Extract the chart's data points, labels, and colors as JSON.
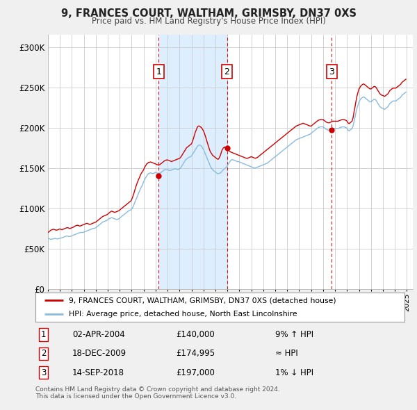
{
  "title": "9, FRANCES COURT, WALTHAM, GRIMSBY, DN37 0XS",
  "subtitle": "Price paid vs. HM Land Registry's House Price Index (HPI)",
  "legend_label_red": "9, FRANCES COURT, WALTHAM, GRIMSBY, DN37 0XS (detached house)",
  "legend_label_blue": "HPI: Average price, detached house, North East Lincolnshire",
  "footer": "Contains HM Land Registry data © Crown copyright and database right 2024.\nThis data is licensed under the Open Government Licence v3.0.",
  "transactions": [
    {
      "num": 1,
      "date": "02-APR-2004",
      "date_x": 2004.25,
      "price": 140000,
      "hpi_label": "9% ↑ HPI"
    },
    {
      "num": 2,
      "date": "18-DEC-2009",
      "date_x": 2009.96,
      "price": 174995,
      "hpi_label": "≈ HPI"
    },
    {
      "num": 3,
      "date": "14-SEP-2018",
      "date_x": 2018.71,
      "price": 197000,
      "hpi_label": "1% ↓ HPI"
    }
  ],
  "shaded_region": [
    2004.25,
    2009.96
  ],
  "yticks": [
    0,
    50000,
    100000,
    150000,
    200000,
    250000,
    300000
  ],
  "ytick_labels": [
    "£0",
    "£50K",
    "£100K",
    "£150K",
    "£200K",
    "£250K",
    "£300K"
  ],
  "xmin": 1995.0,
  "xmax": 2025.5,
  "ymin": 0,
  "ymax": 315000,
  "bg_color": "#f0f0f0",
  "plot_bg_color": "#ffffff",
  "red_color": "#cc0000",
  "blue_color": "#88bbdd",
  "shaded_color": "#ddeeff",
  "grid_color": "#cccccc",
  "hpi_data_years": [
    1995.0,
    1995.08,
    1995.17,
    1995.25,
    1995.33,
    1995.42,
    1995.5,
    1995.58,
    1995.67,
    1995.75,
    1995.83,
    1995.92,
    1996.0,
    1996.08,
    1996.17,
    1996.25,
    1996.33,
    1996.42,
    1996.5,
    1996.58,
    1996.67,
    1996.75,
    1996.83,
    1996.92,
    1997.0,
    1997.08,
    1997.17,
    1997.25,
    1997.33,
    1997.42,
    1997.5,
    1997.58,
    1997.67,
    1997.75,
    1997.83,
    1997.92,
    1998.0,
    1998.08,
    1998.17,
    1998.25,
    1998.33,
    1998.42,
    1998.5,
    1998.58,
    1998.67,
    1998.75,
    1998.83,
    1998.92,
    1999.0,
    1999.08,
    1999.17,
    1999.25,
    1999.33,
    1999.42,
    1999.5,
    1999.58,
    1999.67,
    1999.75,
    1999.83,
    1999.92,
    2000.0,
    2000.08,
    2000.17,
    2000.25,
    2000.33,
    2000.42,
    2000.5,
    2000.58,
    2000.67,
    2000.75,
    2000.83,
    2000.92,
    2001.0,
    2001.08,
    2001.17,
    2001.25,
    2001.33,
    2001.42,
    2001.5,
    2001.58,
    2001.67,
    2001.75,
    2001.83,
    2001.92,
    2002.0,
    2002.08,
    2002.17,
    2002.25,
    2002.33,
    2002.42,
    2002.5,
    2002.58,
    2002.67,
    2002.75,
    2002.83,
    2002.92,
    2003.0,
    2003.08,
    2003.17,
    2003.25,
    2003.33,
    2003.42,
    2003.5,
    2003.58,
    2003.67,
    2003.75,
    2003.83,
    2003.92,
    2004.0,
    2004.08,
    2004.17,
    2004.25,
    2004.33,
    2004.42,
    2004.5,
    2004.58,
    2004.67,
    2004.75,
    2004.83,
    2004.92,
    2005.0,
    2005.08,
    2005.17,
    2005.25,
    2005.33,
    2005.42,
    2005.5,
    2005.58,
    2005.67,
    2005.75,
    2005.83,
    2005.92,
    2006.0,
    2006.08,
    2006.17,
    2006.25,
    2006.33,
    2006.42,
    2006.5,
    2006.58,
    2006.67,
    2006.75,
    2006.83,
    2006.92,
    2007.0,
    2007.08,
    2007.17,
    2007.25,
    2007.33,
    2007.42,
    2007.5,
    2007.58,
    2007.67,
    2007.75,
    2007.83,
    2007.92,
    2008.0,
    2008.08,
    2008.17,
    2008.25,
    2008.33,
    2008.42,
    2008.5,
    2008.58,
    2008.67,
    2008.75,
    2008.83,
    2008.92,
    2009.0,
    2009.08,
    2009.17,
    2009.25,
    2009.33,
    2009.42,
    2009.5,
    2009.58,
    2009.67,
    2009.75,
    2009.83,
    2009.92,
    2010.0,
    2010.08,
    2010.17,
    2010.25,
    2010.33,
    2010.42,
    2010.5,
    2010.58,
    2010.67,
    2010.75,
    2010.83,
    2010.92,
    2011.0,
    2011.08,
    2011.17,
    2011.25,
    2011.33,
    2011.42,
    2011.5,
    2011.58,
    2011.67,
    2011.75,
    2011.83,
    2011.92,
    2012.0,
    2012.08,
    2012.17,
    2012.25,
    2012.33,
    2012.42,
    2012.5,
    2012.58,
    2012.67,
    2012.75,
    2012.83,
    2012.92,
    2013.0,
    2013.08,
    2013.17,
    2013.25,
    2013.33,
    2013.42,
    2013.5,
    2013.58,
    2013.67,
    2013.75,
    2013.83,
    2013.92,
    2014.0,
    2014.08,
    2014.17,
    2014.25,
    2014.33,
    2014.42,
    2014.5,
    2014.58,
    2014.67,
    2014.75,
    2014.83,
    2014.92,
    2015.0,
    2015.08,
    2015.17,
    2015.25,
    2015.33,
    2015.42,
    2015.5,
    2015.58,
    2015.67,
    2015.75,
    2015.83,
    2015.92,
    2016.0,
    2016.08,
    2016.17,
    2016.25,
    2016.33,
    2016.42,
    2016.5,
    2016.58,
    2016.67,
    2016.75,
    2016.83,
    2016.92,
    2017.0,
    2017.08,
    2017.17,
    2017.25,
    2017.33,
    2017.42,
    2017.5,
    2017.58,
    2017.67,
    2017.75,
    2017.83,
    2017.92,
    2018.0,
    2018.08,
    2018.17,
    2018.25,
    2018.33,
    2018.42,
    2018.5,
    2018.58,
    2018.67,
    2018.75,
    2018.83,
    2018.92,
    2019.0,
    2019.08,
    2019.17,
    2019.25,
    2019.33,
    2019.42,
    2019.5,
    2019.58,
    2019.67,
    2019.75,
    2019.83,
    2019.92,
    2020.0,
    2020.08,
    2020.17,
    2020.25,
    2020.33,
    2020.42,
    2020.5,
    2020.58,
    2020.67,
    2020.75,
    2020.83,
    2020.92,
    2021.0,
    2021.08,
    2021.17,
    2021.25,
    2021.33,
    2021.42,
    2021.5,
    2021.58,
    2021.67,
    2021.75,
    2021.83,
    2021.92,
    2022.0,
    2022.08,
    2022.17,
    2022.25,
    2022.33,
    2022.42,
    2022.5,
    2022.58,
    2022.67,
    2022.75,
    2022.83,
    2022.92,
    2023.0,
    2023.08,
    2023.17,
    2023.25,
    2023.33,
    2023.42,
    2023.5,
    2023.58,
    2023.67,
    2023.75,
    2023.83,
    2023.92,
    2024.0,
    2024.08,
    2024.17,
    2024.25,
    2024.33,
    2024.42,
    2024.5,
    2024.58,
    2024.67,
    2024.75,
    2024.83,
    2024.92
  ],
  "hpi_data_values": [
    63000,
    62500,
    62000,
    61500,
    62000,
    62000,
    62500,
    62800,
    62500,
    62000,
    62200,
    62500,
    63000,
    63200,
    63500,
    64000,
    64500,
    65000,
    65500,
    65800,
    65500,
    65000,
    65200,
    65500,
    66000,
    66500,
    67000,
    67500,
    68000,
    68500,
    69000,
    69500,
    70000,
    70000,
    70200,
    70000,
    70500,
    71000,
    71500,
    72000,
    72500,
    73000,
    73500,
    74000,
    74500,
    75000,
    75200,
    75500,
    76000,
    77000,
    78000,
    79000,
    80000,
    81000,
    82000,
    83000,
    83500,
    84000,
    84500,
    85000,
    86000,
    87000,
    87500,
    88000,
    88500,
    88000,
    87500,
    87000,
    86500,
    86000,
    86500,
    87000,
    88000,
    89000,
    90000,
    91000,
    92000,
    93000,
    94000,
    95000,
    96000,
    97000,
    97500,
    98000,
    99000,
    101000,
    104000,
    107000,
    110000,
    113000,
    116000,
    119000,
    122000,
    125000,
    127000,
    130000,
    133000,
    136000,
    138000,
    140000,
    142000,
    143000,
    143500,
    144000,
    143500,
    143000,
    143500,
    144000,
    144500,
    144000,
    143500,
    143000,
    143500,
    144000,
    145000,
    146000,
    147000,
    148000,
    148000,
    148000,
    148000,
    147500,
    147000,
    147000,
    147500,
    148000,
    148500,
    149000,
    149000,
    148500,
    148000,
    148000,
    149000,
    150000,
    152000,
    154000,
    156000,
    158000,
    160000,
    161000,
    162000,
    163000,
    163500,
    164000,
    165000,
    167000,
    169000,
    171000,
    173000,
    175000,
    177000,
    178000,
    178500,
    178000,
    177000,
    175000,
    173000,
    170000,
    167000,
    164000,
    161000,
    158000,
    155000,
    152000,
    150000,
    148000,
    147000,
    146000,
    145000,
    144000,
    143000,
    143000,
    143500,
    144000,
    145000,
    146500,
    148000,
    149000,
    150000,
    151000,
    153000,
    155000,
    157000,
    159000,
    160000,
    160500,
    160000,
    159500,
    159000,
    158500,
    158000,
    158000,
    157500,
    157000,
    156500,
    156000,
    155500,
    155000,
    154500,
    154000,
    153500,
    153000,
    152500,
    152000,
    151500,
    151000,
    150500,
    150000,
    150000,
    150500,
    151000,
    151500,
    152000,
    152500,
    153000,
    153500,
    154000,
    154500,
    155000,
    155500,
    156000,
    157000,
    158000,
    159000,
    160000,
    161000,
    162000,
    163000,
    164000,
    165000,
    166000,
    167000,
    168000,
    169000,
    170000,
    171000,
    172000,
    173000,
    174000,
    175000,
    176000,
    177000,
    178000,
    179000,
    180000,
    181000,
    182000,
    183000,
    184000,
    185000,
    185500,
    186000,
    186500,
    187000,
    187500,
    188000,
    188500,
    189000,
    189500,
    190000,
    190500,
    191000,
    191500,
    192000,
    193000,
    194000,
    195000,
    196000,
    197000,
    198000,
    199000,
    200000,
    200500,
    201000,
    201000,
    201000,
    201000,
    200000,
    199000,
    198000,
    197500,
    197000,
    197000,
    197500,
    198000,
    198500,
    199000,
    199000,
    199000,
    199000,
    199000,
    199000,
    199500,
    200000,
    200500,
    201000,
    201000,
    201000,
    200500,
    200000,
    199000,
    197000,
    196000,
    197000,
    198000,
    199000,
    202000,
    207000,
    213000,
    219000,
    224000,
    228000,
    232000,
    234000,
    236000,
    237000,
    238000,
    238000,
    237000,
    236000,
    235000,
    234000,
    233000,
    232000,
    232000,
    233000,
    234000,
    235000,
    235000,
    234000,
    232000,
    230000,
    228000,
    226000,
    225000,
    224000,
    224000,
    223000,
    223000,
    224000,
    225000,
    226000,
    228000,
    230000,
    231000,
    232000,
    233000,
    233000,
    233000,
    233000,
    234000,
    235000,
    236000,
    237000,
    238000,
    240000,
    241000,
    242000,
    243000,
    244000
  ],
  "price_data_years": [
    1995.0,
    1995.08,
    1995.17,
    1995.25,
    1995.33,
    1995.42,
    1995.5,
    1995.58,
    1995.67,
    1995.75,
    1995.83,
    1995.92,
    1996.0,
    1996.08,
    1996.17,
    1996.25,
    1996.33,
    1996.42,
    1996.5,
    1996.58,
    1996.67,
    1996.75,
    1996.83,
    1996.92,
    1997.0,
    1997.08,
    1997.17,
    1997.25,
    1997.33,
    1997.42,
    1997.5,
    1997.58,
    1997.67,
    1997.75,
    1997.83,
    1997.92,
    1998.0,
    1998.08,
    1998.17,
    1998.25,
    1998.33,
    1998.42,
    1998.5,
    1998.58,
    1998.67,
    1998.75,
    1998.83,
    1998.92,
    1999.0,
    1999.08,
    1999.17,
    1999.25,
    1999.33,
    1999.42,
    1999.5,
    1999.58,
    1999.67,
    1999.75,
    1999.83,
    1999.92,
    2000.0,
    2000.08,
    2000.17,
    2000.25,
    2000.33,
    2000.42,
    2000.5,
    2000.58,
    2000.67,
    2000.75,
    2000.83,
    2000.92,
    2001.0,
    2001.08,
    2001.17,
    2001.25,
    2001.33,
    2001.42,
    2001.5,
    2001.58,
    2001.67,
    2001.75,
    2001.83,
    2001.92,
    2002.0,
    2002.08,
    2002.17,
    2002.25,
    2002.33,
    2002.42,
    2002.5,
    2002.58,
    2002.67,
    2002.75,
    2002.83,
    2002.92,
    2003.0,
    2003.08,
    2003.17,
    2003.25,
    2003.33,
    2003.42,
    2003.5,
    2003.58,
    2003.67,
    2003.75,
    2003.83,
    2003.92,
    2004.0,
    2004.08,
    2004.17,
    2004.25,
    2004.33,
    2004.42,
    2004.5,
    2004.58,
    2004.67,
    2004.75,
    2004.83,
    2004.92,
    2005.0,
    2005.08,
    2005.17,
    2005.25,
    2005.33,
    2005.42,
    2005.5,
    2005.58,
    2005.67,
    2005.75,
    2005.83,
    2005.92,
    2006.0,
    2006.08,
    2006.17,
    2006.25,
    2006.33,
    2006.42,
    2006.5,
    2006.58,
    2006.67,
    2006.75,
    2006.83,
    2006.92,
    2007.0,
    2007.08,
    2007.17,
    2007.25,
    2007.33,
    2007.42,
    2007.5,
    2007.58,
    2007.67,
    2007.75,
    2007.83,
    2007.92,
    2008.0,
    2008.08,
    2008.17,
    2008.25,
    2008.33,
    2008.42,
    2008.5,
    2008.58,
    2008.67,
    2008.75,
    2008.83,
    2008.92,
    2009.0,
    2009.08,
    2009.17,
    2009.25,
    2009.33,
    2009.42,
    2009.5,
    2009.58,
    2009.67,
    2009.75,
    2009.83,
    2009.92,
    2010.0,
    2010.08,
    2010.17,
    2010.25,
    2010.33,
    2010.42,
    2010.5,
    2010.58,
    2010.67,
    2010.75,
    2010.83,
    2010.92,
    2011.0,
    2011.08,
    2011.17,
    2011.25,
    2011.33,
    2011.42,
    2011.5,
    2011.58,
    2011.67,
    2011.75,
    2011.83,
    2011.92,
    2012.0,
    2012.08,
    2012.17,
    2012.25,
    2012.33,
    2012.42,
    2012.5,
    2012.58,
    2012.67,
    2012.75,
    2012.83,
    2012.92,
    2013.0,
    2013.08,
    2013.17,
    2013.25,
    2013.33,
    2013.42,
    2013.5,
    2013.58,
    2013.67,
    2013.75,
    2013.83,
    2013.92,
    2014.0,
    2014.08,
    2014.17,
    2014.25,
    2014.33,
    2014.42,
    2014.5,
    2014.58,
    2014.67,
    2014.75,
    2014.83,
    2014.92,
    2015.0,
    2015.08,
    2015.17,
    2015.25,
    2015.33,
    2015.42,
    2015.5,
    2015.58,
    2015.67,
    2015.75,
    2015.83,
    2015.92,
    2016.0,
    2016.08,
    2016.17,
    2016.25,
    2016.33,
    2016.42,
    2016.5,
    2016.58,
    2016.67,
    2016.75,
    2016.83,
    2016.92,
    2017.0,
    2017.08,
    2017.17,
    2017.25,
    2017.33,
    2017.42,
    2017.5,
    2017.58,
    2017.67,
    2017.75,
    2017.83,
    2017.92,
    2018.0,
    2018.08,
    2018.17,
    2018.25,
    2018.33,
    2018.42,
    2018.5,
    2018.58,
    2018.67,
    2018.75,
    2018.83,
    2018.92,
    2019.0,
    2019.08,
    2019.17,
    2019.25,
    2019.33,
    2019.42,
    2019.5,
    2019.58,
    2019.67,
    2019.75,
    2019.83,
    2019.92,
    2020.0,
    2020.08,
    2020.17,
    2020.25,
    2020.33,
    2020.42,
    2020.5,
    2020.58,
    2020.67,
    2020.75,
    2020.83,
    2020.92,
    2021.0,
    2021.08,
    2021.17,
    2021.25,
    2021.33,
    2021.42,
    2021.5,
    2021.58,
    2021.67,
    2021.75,
    2021.83,
    2021.92,
    2022.0,
    2022.08,
    2022.17,
    2022.25,
    2022.33,
    2022.42,
    2022.5,
    2022.58,
    2022.67,
    2022.75,
    2022.83,
    2022.92,
    2023.0,
    2023.08,
    2023.17,
    2023.25,
    2023.33,
    2023.42,
    2023.5,
    2023.58,
    2023.67,
    2023.75,
    2023.83,
    2023.92,
    2024.0,
    2024.08,
    2024.17,
    2024.25,
    2024.33,
    2024.42,
    2024.5,
    2024.58,
    2024.67,
    2024.75,
    2024.83,
    2024.92
  ],
  "price_data_values": [
    70000,
    71000,
    72000,
    73000,
    73500,
    74000,
    74000,
    73500,
    73000,
    73000,
    73500,
    74000,
    74500,
    74000,
    73500,
    74000,
    74500,
    75000,
    75500,
    76000,
    76000,
    75500,
    75000,
    75500,
    76000,
    76500,
    77000,
    78000,
    78500,
    79000,
    79000,
    78500,
    78000,
    78500,
    79000,
    79500,
    80000,
    80500,
    81000,
    81500,
    81000,
    80500,
    80000,
    80500,
    81000,
    81500,
    82000,
    82500,
    83000,
    84000,
    85000,
    86000,
    87000,
    88000,
    89000,
    90000,
    90500,
    91000,
    91500,
    92000,
    93000,
    94000,
    95000,
    96000,
    96500,
    96000,
    95500,
    95000,
    95500,
    96000,
    96500,
    97000,
    98000,
    99000,
    100000,
    101000,
    102000,
    103000,
    104000,
    105000,
    106000,
    107000,
    108000,
    109000,
    111000,
    114000,
    118000,
    122000,
    126000,
    130000,
    133000,
    136000,
    139000,
    142000,
    144000,
    146000,
    148000,
    151000,
    153000,
    155000,
    156000,
    157000,
    157000,
    157500,
    157000,
    156500,
    156000,
    155500,
    155000,
    154500,
    154000,
    153500,
    154000,
    155000,
    156000,
    157000,
    158000,
    159000,
    159500,
    160000,
    160000,
    159500,
    159000,
    158500,
    158000,
    158500,
    159000,
    159500,
    160000,
    160500,
    161000,
    161500,
    162000,
    163000,
    165000,
    167000,
    169000,
    171000,
    173000,
    175000,
    176000,
    177000,
    178000,
    179000,
    180000,
    183000,
    187000,
    191000,
    195000,
    198000,
    201000,
    202000,
    202000,
    201000,
    200000,
    198000,
    196000,
    193000,
    189000,
    185000,
    181000,
    177000,
    173000,
    170000,
    168000,
    166000,
    165000,
    164000,
    163000,
    162000,
    161000,
    161000,
    163000,
    166000,
    170000,
    173000,
    175000,
    176000,
    175000,
    174000,
    173000,
    172000,
    171000,
    170000,
    169500,
    169000,
    168500,
    168000,
    167500,
    167000,
    166500,
    166000,
    165500,
    165000,
    164500,
    164000,
    163500,
    163000,
    162500,
    162000,
    162000,
    162500,
    163000,
    163500,
    164000,
    163500,
    163000,
    162500,
    162000,
    162500,
    163000,
    164000,
    165000,
    166000,
    167000,
    168000,
    169000,
    170000,
    171000,
    172000,
    173000,
    174000,
    175000,
    176000,
    177000,
    178000,
    179000,
    180000,
    181000,
    182000,
    183000,
    184000,
    185000,
    186000,
    187000,
    188000,
    189000,
    190000,
    191000,
    192000,
    193000,
    194000,
    195000,
    196000,
    197000,
    198000,
    199000,
    200000,
    201000,
    202000,
    202500,
    203000,
    203500,
    204000,
    204500,
    205000,
    205500,
    205000,
    204500,
    204000,
    203500,
    203000,
    202500,
    202000,
    202000,
    203000,
    204000,
    205000,
    206000,
    207000,
    208000,
    209000,
    209500,
    210000,
    210000,
    210000,
    210000,
    209000,
    208000,
    207000,
    206500,
    206000,
    206000,
    206500,
    207000,
    207500,
    208000,
    208000,
    208000,
    208000,
    208000,
    208000,
    208500,
    209000,
    209500,
    210000,
    210000,
    210000,
    209500,
    209000,
    208000,
    206000,
    205000,
    206000,
    207000,
    208000,
    212000,
    219000,
    226000,
    233000,
    239000,
    244000,
    248000,
    250000,
    252000,
    253000,
    254000,
    254000,
    253000,
    252000,
    251000,
    250000,
    249000,
    248000,
    248000,
    249000,
    250000,
    251000,
    251000,
    250000,
    248000,
    246000,
    244000,
    242000,
    241000,
    240000,
    240000,
    239000,
    239000,
    240000,
    241000,
    242000,
    244000,
    246000,
    247000,
    248000,
    249000,
    249000,
    249000,
    249000,
    250000,
    251000,
    252000,
    253000,
    254000,
    256000,
    257000,
    258000,
    259000,
    260000
  ]
}
